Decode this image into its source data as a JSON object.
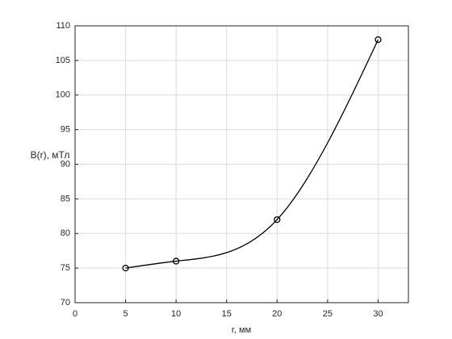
{
  "chart_data": {
    "type": "line",
    "xlabel": "r, мм",
    "ylabel": "B(r), мТл",
    "x": [
      5,
      10,
      20,
      30
    ],
    "values": [
      75,
      76,
      82,
      108
    ],
    "color": "#000000",
    "marker": "circle",
    "xlim": [
      0,
      33
    ],
    "ylim": [
      70,
      110
    ],
    "xticks": [
      0,
      5,
      10,
      15,
      20,
      25,
      30
    ],
    "yticks": [
      70,
      75,
      80,
      85,
      90,
      95,
      100,
      105,
      110
    ],
    "grid": true
  }
}
